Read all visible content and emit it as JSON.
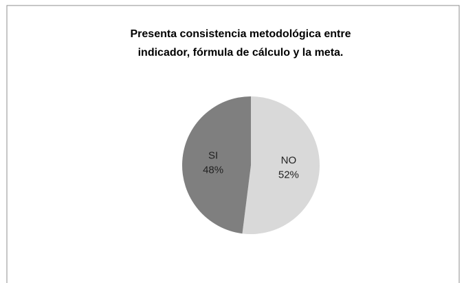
{
  "chart_data": {
    "type": "pie",
    "title": [
      "Presenta consistencia metodológica entre",
      "indicador, fórmula de cálculo y la meta."
    ],
    "categories": [
      "NO",
      "SI"
    ],
    "values": [
      52,
      48
    ],
    "value_labels": [
      "52%",
      "48%"
    ],
    "colors": [
      "#d9d9d9",
      "#7f7f7f"
    ]
  }
}
